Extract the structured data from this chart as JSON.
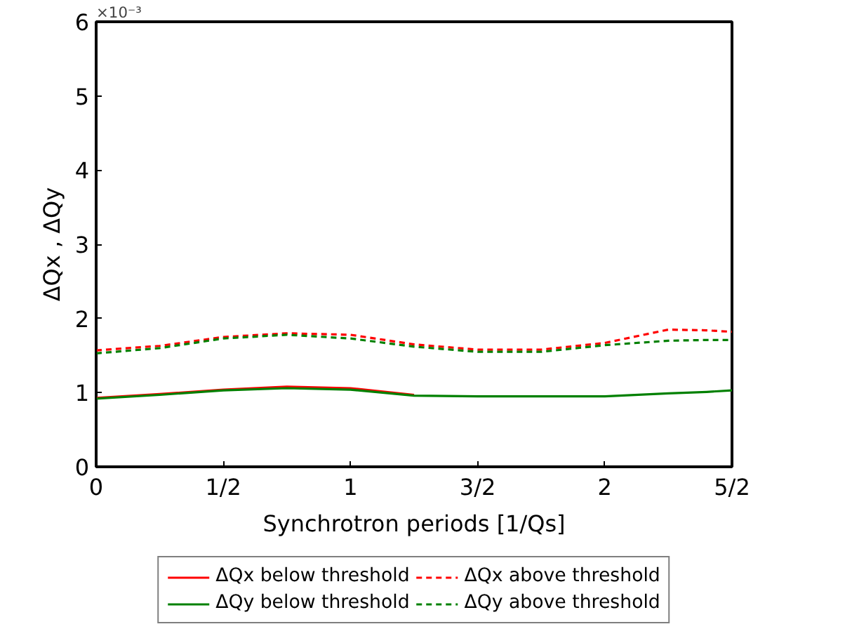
{
  "chart_data": {
    "type": "line",
    "xlabel": "Synchrotron periods [1/Qs]",
    "ylabel": "ΔQx , ΔQy",
    "annotations": [
      "×10⁻³"
    ],
    "xlim": [
      0,
      2.5
    ],
    "xticks": [
      0,
      {
        "value": 0.5,
        "label": "1/2"
      },
      1,
      {
        "value": 1.5,
        "label": "3/2"
      },
      2,
      {
        "value": 2.5,
        "label": "5/2"
      }
    ],
    "ylim": [
      0,
      6
    ],
    "yticks": [
      0,
      1,
      2,
      3,
      4,
      5,
      6
    ],
    "grid": false,
    "legend": "bottom",
    "x": [
      0,
      0.25,
      0.5,
      0.75,
      1.0,
      1.25,
      1.5,
      1.75,
      2.0,
      2.25,
      2.4,
      2.5
    ],
    "series": [
      {
        "name": "ΔQx below threshold",
        "color": "#ff0000",
        "line_style": "solid",
        "values": [
          0.93,
          0.98,
          1.04,
          1.08,
          1.06,
          0.97,
          null,
          null,
          null,
          null,
          null,
          null
        ]
      },
      {
        "name": "ΔQx above threshold",
        "color": "#ff0000",
        "line_style": "dashed",
        "values": [
          1.57,
          1.63,
          1.75,
          1.8,
          1.78,
          1.65,
          1.58,
          1.58,
          1.67,
          1.85,
          1.84,
          1.82
        ]
      },
      {
        "name": "ΔQy below threshold",
        "color": "#008000",
        "line_style": "solid",
        "values": [
          0.92,
          0.97,
          1.03,
          1.06,
          1.04,
          0.96,
          0.95,
          0.95,
          0.95,
          0.99,
          1.01,
          1.03
        ]
      },
      {
        "name": "ΔQy above threshold",
        "color": "#008000",
        "line_style": "dashed",
        "values": [
          1.53,
          1.6,
          1.73,
          1.78,
          1.73,
          1.62,
          1.55,
          1.55,
          1.64,
          1.7,
          1.71,
          1.71
        ]
      }
    ]
  }
}
